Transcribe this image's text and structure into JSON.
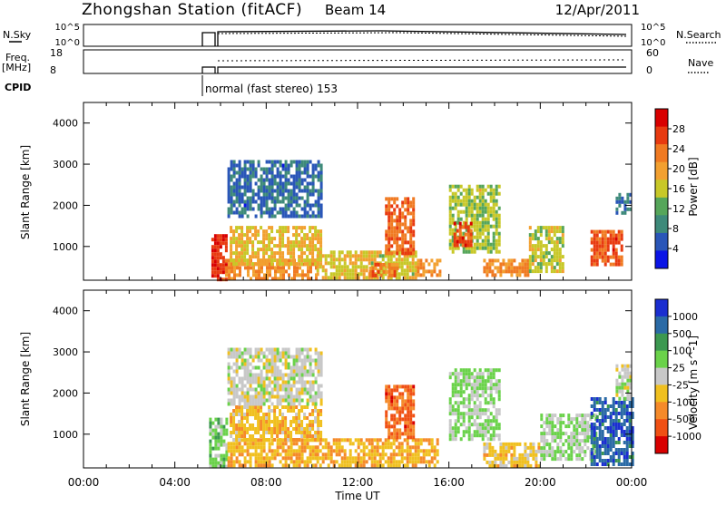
{
  "header": {
    "title": "Zhongshan Station (fitACF)",
    "beam": "Beam 14",
    "date": "12/Apr/2011"
  },
  "top_panels": {
    "nsky_label": "N.Sky",
    "nsky_ticks": [
      "10^5",
      "10^0"
    ],
    "nsearch_label": "N.Search",
    "nsearch_ticks": [
      "10^5",
      "10^0"
    ],
    "freq_label_1": "Freq.",
    "freq_label_2": "[MHz]",
    "freq_ticks": [
      "18",
      "8"
    ],
    "nave_label": "Nave",
    "nave_ticks": [
      "60",
      "0"
    ],
    "cpid_label": "CPID",
    "cpid_text": "normal (fast stereo) 153"
  },
  "x_axis": {
    "label": "Time UT",
    "ticks": [
      "00:00",
      "04:00",
      "08:00",
      "12:00",
      "16:00",
      "20:00",
      "00:00"
    ]
  },
  "colors": {
    "power": [
      "#0a14e6",
      "#2a56b8",
      "#3e8a7a",
      "#56a65a",
      "#c8c828",
      "#f2a030",
      "#f07a22",
      "#e83a10",
      "#d80000"
    ],
    "velocity": [
      "#d80000",
      "#f05014",
      "#f58a2a",
      "#f0c020",
      "#c8c8c8",
      "#6ad24a",
      "#3c9850",
      "#2a6aa6",
      "#1a2ed0"
    ]
  },
  "chart_data": [
    {
      "type": "heatmap",
      "title": "",
      "xlabel": "Time UT",
      "ylabel": "Slant Range [km]",
      "x_range_hours": [
        0,
        24
      ],
      "ylim": [
        180,
        4500
      ],
      "y_ticks": [
        "1000",
        "2000",
        "3000",
        "4000"
      ],
      "colorbar_label": "Power [dB]",
      "colorbar_ticks": [
        "4",
        "8",
        "12",
        "16",
        "20",
        "24",
        "28"
      ],
      "colorbar_range": [
        0,
        30
      ],
      "regions": [
        {
          "t0": 5.6,
          "t1": 6.2,
          "r0": 200,
          "r1": 1300,
          "v": 26
        },
        {
          "t0": 6.2,
          "t1": 10.2,
          "r0": 200,
          "r1": 700,
          "v": 20
        },
        {
          "t0": 6.4,
          "t1": 10.4,
          "r0": 600,
          "r1": 1500,
          "v": 17
        },
        {
          "t0": 6.3,
          "t1": 10.4,
          "r0": 1700,
          "r1": 3100,
          "v": 6
        },
        {
          "t0": 10.2,
          "t1": 14.5,
          "r0": 250,
          "r1": 900,
          "v": 16
        },
        {
          "t0": 12.5,
          "t1": 13.8,
          "r0": 300,
          "r1": 600,
          "v": 22
        },
        {
          "t0": 13.2,
          "t1": 14.4,
          "r0": 800,
          "r1": 2200,
          "v": 23
        },
        {
          "t0": 14.6,
          "t1": 15.6,
          "r0": 300,
          "r1": 700,
          "v": 20
        },
        {
          "t0": 16.0,
          "t1": 18.2,
          "r0": 900,
          "r1": 2500,
          "v": 14
        },
        {
          "t0": 16.2,
          "t1": 17.0,
          "r0": 1000,
          "r1": 1600,
          "v": 25
        },
        {
          "t0": 17.5,
          "t1": 19.5,
          "r0": 300,
          "r1": 700,
          "v": 20
        },
        {
          "t0": 19.5,
          "t1": 21.0,
          "r0": 400,
          "r1": 1500,
          "v": 15
        },
        {
          "t0": 22.2,
          "t1": 23.6,
          "r0": 600,
          "r1": 1400,
          "v": 24
        },
        {
          "t0": 23.3,
          "t1": 24.0,
          "r0": 1800,
          "r1": 2300,
          "v": 7
        }
      ]
    },
    {
      "type": "heatmap",
      "title": "",
      "xlabel": "Time UT",
      "ylabel": "Slant Range [km]",
      "x_range_hours": [
        0,
        24
      ],
      "ylim": [
        180,
        4500
      ],
      "y_ticks": [
        "1000",
        "2000",
        "3000",
        "4000"
      ],
      "colorbar_label": "Velocity [m s^-1]",
      "colorbar_ticks": [
        "1000",
        "500",
        "100",
        "25",
        "-25",
        "-100",
        "-500",
        "-1000"
      ],
      "colorbar_range": [
        -1000,
        1000
      ],
      "regions": [
        {
          "t0": 5.5,
          "t1": 6.3,
          "r0": 200,
          "r1": 1400,
          "v": 200
        },
        {
          "t0": 6.3,
          "t1": 10.2,
          "r0": 200,
          "r1": 900,
          "v": -300
        },
        {
          "t0": 6.4,
          "t1": 10.4,
          "r0": 900,
          "r1": 1700,
          "v": -250
        },
        {
          "t0": 6.3,
          "t1": 10.4,
          "r0": 1700,
          "r1": 3100,
          "v": 0
        },
        {
          "t0": 10.2,
          "t1": 15.5,
          "r0": 250,
          "r1": 900,
          "v": -300
        },
        {
          "t0": 13.2,
          "t1": 14.4,
          "r0": 900,
          "r1": 2200,
          "v": -600
        },
        {
          "t0": 16.0,
          "t1": 18.2,
          "r0": 900,
          "r1": 2600,
          "v": 150
        },
        {
          "t0": 17.5,
          "t1": 20.0,
          "r0": 250,
          "r1": 800,
          "v": -200
        },
        {
          "t0": 20.0,
          "t1": 22.5,
          "r0": 400,
          "r1": 1500,
          "v": 100
        },
        {
          "t0": 22.2,
          "t1": 24.0,
          "r0": 300,
          "r1": 1900,
          "v": 700
        },
        {
          "t0": 23.3,
          "t1": 24.0,
          "r0": 1900,
          "r1": 2700,
          "v": 0
        }
      ]
    }
  ]
}
